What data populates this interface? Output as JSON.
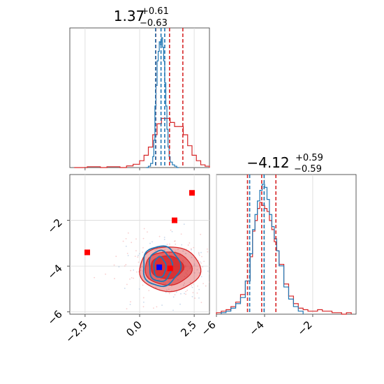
{
  "chart_data": [
    {
      "type": "histogram",
      "panel": "marginal-x1",
      "title": {
        "base": "1.37",
        "sup": "+0.61",
        "sub": "−0.63"
      },
      "xlim": [
        -3.2,
        3.2
      ],
      "xgrid": [
        -2.5,
        0.0,
        2.5
      ],
      "series": [
        {
          "color": "#d62728",
          "x": [
            -3.0,
            -2.7,
            -2.4,
            -2.1,
            -1.8,
            -1.5,
            -1.2,
            -0.9,
            -0.6,
            -0.3,
            0.0,
            0.2,
            0.4,
            0.6,
            0.8,
            1.0,
            1.2,
            1.4,
            1.6,
            1.8,
            2.0,
            2.2,
            2.4,
            2.6,
            2.8,
            3.0,
            3.2
          ],
          "density": [
            0.0,
            0.0,
            0.006,
            0.006,
            0.0,
            0.006,
            0.006,
            0.0,
            0.012,
            0.024,
            0.05,
            0.09,
            0.15,
            0.24,
            0.32,
            0.36,
            0.36,
            0.33,
            0.3,
            0.3,
            0.24,
            0.16,
            0.09,
            0.05,
            0.02,
            0.01,
            0.0
          ],
          "quantile_lines": [
            0.74,
            1.37,
            1.98
          ]
        },
        {
          "color": "#1f77b4",
          "x": [
            0.3,
            0.4,
            0.5,
            0.6,
            0.65,
            0.7,
            0.75,
            0.8,
            0.85,
            0.9,
            0.95,
            1.0,
            1.05,
            1.1,
            1.15,
            1.2,
            1.25,
            1.3,
            1.35,
            1.4,
            1.5,
            1.6,
            1.7,
            1.8
          ],
          "density": [
            0.0,
            0.01,
            0.03,
            0.08,
            0.2,
            0.45,
            0.6,
            0.78,
            0.85,
            0.92,
            0.9,
            0.95,
            0.88,
            0.78,
            0.62,
            0.45,
            0.28,
            0.15,
            0.08,
            0.04,
            0.02,
            0.01,
            0.0,
            0.0
          ],
          "quantile_lines": [
            0.73,
            0.98,
            1.15
          ]
        }
      ]
    },
    {
      "type": "histogram",
      "panel": "marginal-x2",
      "title": {
        "base": "−4.12",
        "sup": "+0.59",
        "sub": "−0.59"
      },
      "xlim": [
        -6.0,
        -0.2
      ],
      "xticks": [
        -6,
        -4,
        -2
      ],
      "xtick_labels": [
        "−6",
        "−4",
        "−2"
      ],
      "series": [
        {
          "color": "#d62728",
          "x": [
            -6.0,
            -5.8,
            -5.6,
            -5.4,
            -5.2,
            -5.0,
            -4.8,
            -4.6,
            -4.5,
            -4.4,
            -4.3,
            -4.2,
            -4.1,
            -4.0,
            -3.9,
            -3.8,
            -3.7,
            -3.6,
            -3.5,
            -3.4,
            -3.2,
            -3.0,
            -2.8,
            -2.6,
            -2.4,
            -2.2,
            -2.0,
            -1.8,
            -1.6,
            -1.4,
            -1.2,
            -1.0,
            -0.8,
            -0.6,
            -0.4
          ],
          "density": [
            0.01,
            0.02,
            0.03,
            0.05,
            0.08,
            0.13,
            0.22,
            0.38,
            0.55,
            0.62,
            0.7,
            0.74,
            0.72,
            0.7,
            0.68,
            0.62,
            0.56,
            0.48,
            0.42,
            0.33,
            0.2,
            0.12,
            0.07,
            0.04,
            0.03,
            0.02,
            0.02,
            0.03,
            0.02,
            0.02,
            0.01,
            0.01,
            0.0,
            0.01,
            0.0
          ],
          "quantile_lines": [
            -4.71,
            -4.12,
            -3.53
          ]
        },
        {
          "color": "#1f77b4",
          "x": [
            -5.8,
            -5.6,
            -5.4,
            -5.2,
            -5.0,
            -4.8,
            -4.6,
            -4.5,
            -4.4,
            -4.3,
            -4.2,
            -4.1,
            -4.0,
            -3.9,
            -3.8,
            -3.7,
            -3.6,
            -3.5,
            -3.4,
            -3.2,
            -3.0,
            -2.8,
            -2.6,
            -2.4
          ],
          "density": [
            0.01,
            0.02,
            0.04,
            0.07,
            0.11,
            0.22,
            0.4,
            0.56,
            0.66,
            0.75,
            0.82,
            0.86,
            0.84,
            0.76,
            0.66,
            0.58,
            0.5,
            0.42,
            0.32,
            0.18,
            0.1,
            0.05,
            0.02,
            0.0
          ],
          "quantile_lines": [
            -4.62,
            -4.02
          ]
        }
      ]
    },
    {
      "type": "scatter",
      "panel": "joint",
      "xlim": [
        -3.2,
        3.2
      ],
      "ylim": [
        -6.1,
        0.0
      ],
      "xticks": [
        -2.5,
        0.0,
        2.5
      ],
      "xtick_labels": [
        "−2.5",
        "0.0",
        "2.5"
      ],
      "yticks": [
        -6,
        -4,
        -2
      ],
      "ytick_labels": [
        "−6",
        "−4",
        "−2"
      ],
      "red_markers": [
        {
          "x": 2.4,
          "y": -0.8
        },
        {
          "x": 1.6,
          "y": -2.0
        },
        {
          "x": -2.4,
          "y": -3.4
        },
        {
          "x": 1.4,
          "y": -4.1
        }
      ],
      "blue_marker": {
        "x": 0.9,
        "y": -4.05
      },
      "red_contours": [
        {
          "level": "outer",
          "cx": 1.37,
          "cy": -4.12,
          "rx": 2.8,
          "ry": 1.95,
          "alpha": 0.35
        },
        {
          "level": "mid",
          "cx": 1.3,
          "cy": -4.1,
          "rx": 2.15,
          "ry": 1.45,
          "alpha": 0.55
        },
        {
          "level": "inner",
          "cx": 1.25,
          "cy": -4.05,
          "rx": 1.5,
          "ry": 1.0,
          "alpha": 0.8
        }
      ],
      "blue_contours": [
        {
          "level": "outer",
          "cx": 0.98,
          "cy": -4.0,
          "rx": 1.7,
          "ry": 1.75
        },
        {
          "level": "mid",
          "cx": 0.95,
          "cy": -4.0,
          "rx": 1.05,
          "ry": 1.35
        },
        {
          "level": "inner",
          "cx": 0.92,
          "cy": -4.05,
          "rx": 0.55,
          "ry": 0.9
        }
      ]
    }
  ]
}
